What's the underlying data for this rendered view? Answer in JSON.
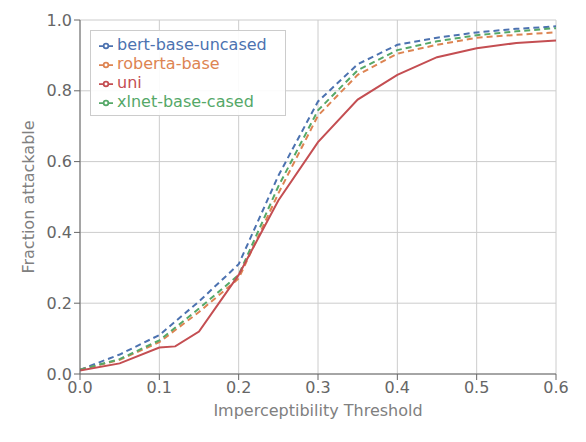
{
  "chart_data": {
    "type": "line",
    "xlabel": "Imperceptibility Threshold",
    "ylabel": "Fraction attackable",
    "xlim": [
      0.0,
      0.6
    ],
    "ylim": [
      0.0,
      1.0
    ],
    "xticks": [
      {
        "value": 0.0,
        "label": "0.0"
      },
      0.1,
      0.2,
      0.3,
      0.4,
      0.5,
      0.6
    ],
    "yticks": [
      {
        "value": 0.0,
        "label": "0.0"
      },
      0.2,
      0.4,
      0.6,
      0.8,
      {
        "value": 1.0,
        "label": "1.0"
      }
    ],
    "grid": true,
    "legend": "upper left",
    "series": [
      {
        "name": "bert-base-uncased",
        "color": "#4c72b0",
        "line_style": "dashed",
        "x": [
          0.0,
          0.05,
          0.1,
          0.15,
          0.2,
          0.25,
          0.3,
          0.35,
          0.4,
          0.45,
          0.5,
          0.55,
          0.6
        ],
        "values": [
          0.012,
          0.055,
          0.11,
          0.205,
          0.31,
          0.56,
          0.77,
          0.875,
          0.93,
          0.95,
          0.965,
          0.975,
          0.982
        ]
      },
      {
        "name": "roberta-base",
        "color": "#dd8452",
        "line_style": "dashed",
        "x": [
          0.0,
          0.05,
          0.1,
          0.15,
          0.2,
          0.25,
          0.3,
          0.35,
          0.4,
          0.45,
          0.5,
          0.55,
          0.6
        ],
        "values": [
          0.012,
          0.04,
          0.09,
          0.175,
          0.27,
          0.51,
          0.73,
          0.845,
          0.905,
          0.93,
          0.95,
          0.958,
          0.965
        ]
      },
      {
        "name": "xlnet-base-cased",
        "color": "#55a868",
        "line_style": "dashed",
        "x": [
          0.0,
          0.05,
          0.1,
          0.15,
          0.2,
          0.25,
          0.3,
          0.35,
          0.4,
          0.45,
          0.5,
          0.55,
          0.6
        ],
        "values": [
          0.012,
          0.042,
          0.095,
          0.185,
          0.28,
          0.53,
          0.745,
          0.858,
          0.915,
          0.94,
          0.957,
          0.968,
          0.977
        ]
      },
      {
        "name": "uni",
        "color": "#c44e52",
        "line_style": "solid",
        "x": [
          0.0,
          0.05,
          0.1,
          0.12,
          0.15,
          0.2,
          0.25,
          0.3,
          0.35,
          0.4,
          0.45,
          0.5,
          0.55,
          0.6
        ],
        "values": [
          0.01,
          0.03,
          0.075,
          0.078,
          0.12,
          0.28,
          0.49,
          0.655,
          0.775,
          0.845,
          0.895,
          0.92,
          0.935,
          0.942
        ]
      }
    ]
  }
}
